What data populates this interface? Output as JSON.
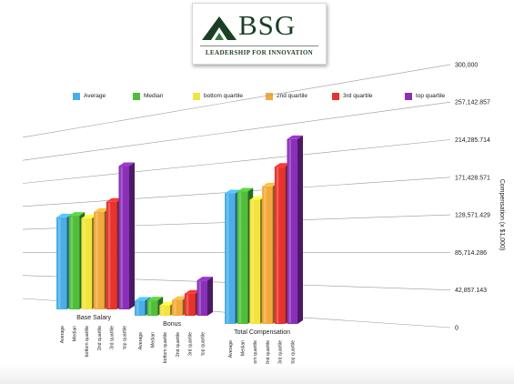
{
  "logo": {
    "letters": "BSG",
    "tagline": "LEADERSHIP FOR INNOVATION"
  },
  "chart_data": {
    "type": "bar",
    "style": "3d-perspective",
    "title": "",
    "xlabel": "",
    "ylabel": "Compensation (x $1,000)",
    "ylim": [
      0,
      300000
    ],
    "y_ticks": [
      "0",
      "42,857.143",
      "85,714.286",
      "128,571.429",
      "171,428.571",
      "214,285.714",
      "257,142.857",
      "300,000"
    ],
    "grid": true,
    "legend_position": "top",
    "categories": [
      "Base Salary",
      "Bonus",
      "Total Compensation"
    ],
    "series": [
      {
        "name": "Average",
        "color": "#4aaee8",
        "values": [
          162000,
          24000,
          186000
        ]
      },
      {
        "name": "Median",
        "color": "#4fbf3a",
        "values": [
          162000,
          24000,
          186000
        ]
      },
      {
        "name": "bottom quartile",
        "color": "#f3e43c",
        "values": [
          155000,
          16000,
          172000
        ]
      },
      {
        "name": "2nd quartile",
        "color": "#f4a93c",
        "values": [
          163000,
          24000,
          188000
        ]
      },
      {
        "name": "3rd quartile",
        "color": "#e8322c",
        "values": [
          177000,
          33000,
          212000
        ]
      },
      {
        "name": "top quartile",
        "color": "#8a2fb8",
        "values": [
          232000,
          52000,
          246000
        ]
      }
    ],
    "bar_labels": [
      "Average",
      "Median",
      "bottom quartile",
      "2nd quartile",
      "3rd quartile",
      "top quartile"
    ]
  }
}
